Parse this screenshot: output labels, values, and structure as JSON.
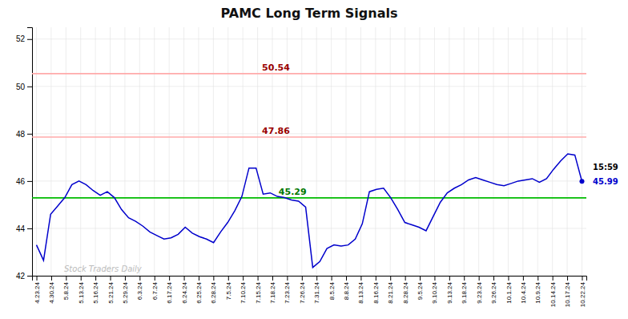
{
  "chart_data": {
    "type": "line",
    "title": "PAMC Long Term Signals",
    "color": "#0000cc",
    "grid": true,
    "xlim": [
      -0.3,
      37.3
    ],
    "xticks": [
      {
        "value": 0,
        "label": "4.23.24"
      },
      {
        "value": 1,
        "label": "4.30.24"
      },
      {
        "value": 2,
        "label": "5.8.24"
      },
      {
        "value": 3,
        "label": "5.13.24"
      },
      {
        "value": 4,
        "label": "5.16.24"
      },
      {
        "value": 5,
        "label": "5.21.24"
      },
      {
        "value": 6,
        "label": "5.29.24"
      },
      {
        "value": 7,
        "label": "6.3.24"
      },
      {
        "value": 8,
        "label": "6.7.24"
      },
      {
        "value": 9,
        "label": "6.17.24"
      },
      {
        "value": 10,
        "label": "6.24.24"
      },
      {
        "value": 11,
        "label": "6.25.24"
      },
      {
        "value": 12,
        "label": "6.28.24"
      },
      {
        "value": 13,
        "label": "7.5.24"
      },
      {
        "value": 14,
        "label": "7.10.24"
      },
      {
        "value": 15,
        "label": "7.15.24"
      },
      {
        "value": 16,
        "label": "7.18.24"
      },
      {
        "value": 17,
        "label": "7.23.24"
      },
      {
        "value": 18,
        "label": "7.26.24"
      },
      {
        "value": 19,
        "label": "7.31.24"
      },
      {
        "value": 20,
        "label": "8.5.24"
      },
      {
        "value": 21,
        "label": "8.8.24"
      },
      {
        "value": 22,
        "label": "8.13.24"
      },
      {
        "value": 23,
        "label": "8.16.24"
      },
      {
        "value": 24,
        "label": "8.21.24"
      },
      {
        "value": 25,
        "label": "8.28.24"
      },
      {
        "value": 26,
        "label": "9.5.24"
      },
      {
        "value": 27,
        "label": "9.10.24"
      },
      {
        "value": 28,
        "label": "9.13.24"
      },
      {
        "value": 29,
        "label": "9.18.24"
      },
      {
        "value": 30,
        "label": "9.23.24"
      },
      {
        "value": 31,
        "label": "9.26.24"
      },
      {
        "value": 32,
        "label": "10.1.24"
      },
      {
        "value": 33,
        "label": "10.4.24"
      },
      {
        "value": 34,
        "label": "10.9.24"
      },
      {
        "value": 35,
        "label": "10.14.24"
      },
      {
        "value": 36,
        "label": "10.17.24"
      },
      {
        "value": 37,
        "label": "10.22.24"
      }
    ],
    "ylim": [
      42,
      52.5
    ],
    "yticks": [
      42,
      44,
      46,
      48,
      50,
      52
    ],
    "x": [
      0,
      0.4805,
      0.961,
      1.4416,
      1.9221,
      2.4026,
      2.8831,
      3.3636,
      3.8442,
      4.3247,
      4.8052,
      5.2857,
      5.7662,
      6.2468,
      6.7273,
      7.2078,
      7.6883,
      8.1688,
      8.6494,
      9.1299,
      9.6104,
      10.0909,
      10.5714,
      11.0519,
      11.5325,
      12.013,
      12.4935,
      12.974,
      13.4545,
      13.9351,
      14.4156,
      14.8961,
      15.3766,
      15.8571,
      16.3377,
      16.8182,
      17.2987,
      17.7792,
      18.2597,
      18.7403,
      19.2208,
      19.7013,
      20.1818,
      20.6623,
      21.1429,
      21.6234,
      22.1039,
      22.5844,
      23.0649,
      23.5455,
      24.026,
      24.5065,
      24.987,
      25.4675,
      25.9481,
      26.4286,
      26.9091,
      27.3896,
      27.8701,
      28.3506,
      28.8312,
      29.3117,
      29.7922,
      30.2727,
      30.7532,
      31.2338,
      31.7143,
      32.1948,
      32.6753,
      33.1558,
      33.6364,
      34.1169,
      34.5974,
      35.0779,
      35.5584,
      36.039,
      36.5195,
      37
    ],
    "values": [
      43.3,
      42.65,
      44.6,
      44.95,
      45.3,
      45.85,
      46.0,
      45.85,
      45.6,
      45.4,
      45.55,
      45.3,
      44.8,
      44.45,
      44.3,
      44.1,
      43.85,
      43.7,
      43.55,
      43.6,
      43.75,
      44.05,
      43.8,
      43.65,
      43.55,
      43.4,
      43.85,
      44.25,
      44.75,
      45.35,
      46.55,
      46.55,
      45.45,
      45.5,
      45.35,
      45.3,
      45.2,
      45.15,
      44.9,
      42.35,
      42.6,
      43.15,
      43.3,
      43.25,
      43.3,
      43.55,
      44.2,
      45.55,
      45.65,
      45.7,
      45.3,
      44.8,
      44.25,
      44.15,
      44.05,
      43.9,
      44.5,
      45.1,
      45.5,
      45.7,
      45.85,
      46.05,
      46.15,
      46.05,
      45.95,
      45.85,
      45.8,
      45.9,
      46.0,
      46.05,
      46.1,
      45.95,
      46.1,
      46.5,
      46.85,
      47.15,
      47.1,
      45.99
    ],
    "reference_lines": [
      {
        "value": 50.54,
        "label": "50.54",
        "color": "#ffaaaa",
        "label_color": "#990000"
      },
      {
        "value": 47.86,
        "label": "47.86",
        "color": "#ffaaaa",
        "label_color": "#990000"
      },
      {
        "value": 45.29,
        "label": "45.29",
        "color": "#00bb00",
        "label_color": "#007700"
      }
    ],
    "end_label": {
      "time": "15:59",
      "price": 45.99
    },
    "watermark": "Stock Traders Daily"
  }
}
